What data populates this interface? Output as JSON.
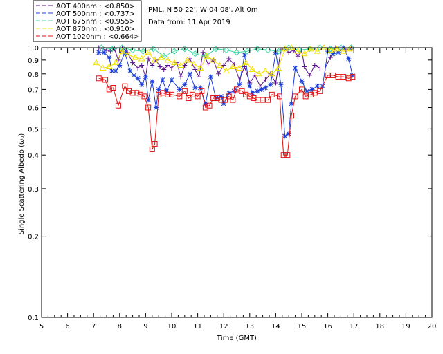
{
  "header": {
    "site": "PML, N 50 22', W 04 08', Alt 0m",
    "date": "Data from: 11 Apr 2019"
  },
  "legend": [
    {
      "label": "AOT  400nm : <0.850>",
      "color": "#5a0f8c"
    },
    {
      "label": "AOT  500nm : <0.737>",
      "color": "#1a3cd9"
    },
    {
      "label": "AOT  675nm : <0.955>",
      "color": "#3ed6a0"
    },
    {
      "label": "AOT  870nm : <0.910>",
      "color": "#f2e000"
    },
    {
      "label": "AOT 1020nm : <0.664>",
      "color": "#e01010"
    }
  ],
  "chart_data": {
    "type": "line",
    "title": "PML, N 50 22', W 04 08', Alt 0m",
    "subtitle": "Data from: 11 Apr 2019",
    "xlabel": "Time (GMT)",
    "ylabel": "Single Scattering Albedo (ω₀)",
    "xlim": [
      5,
      20
    ],
    "ylim": [
      0.1,
      1.0
    ],
    "yscale": "log",
    "x_ticks": [
      5,
      6,
      7,
      8,
      9,
      10,
      11,
      12,
      13,
      14,
      15,
      16,
      17,
      18,
      19,
      20
    ],
    "y_ticks": [
      0.1,
      0.2,
      0.3,
      0.4,
      0.5,
      0.6,
      0.7,
      0.8,
      0.9,
      1.0
    ],
    "y_tick_labels": [
      "0.1",
      "0.2",
      "0.3",
      "0.4",
      "0.5",
      "0.6",
      "0.7",
      "0.8",
      "0.9",
      "1.0"
    ],
    "series": [
      {
        "name": "AOT  400nm : <0.850>",
        "color": "#5a0f8c",
        "marker": "plus",
        "x": [
          7.2,
          7.5,
          7.65,
          7.8,
          7.95,
          8.1,
          8.3,
          8.5,
          8.7,
          8.85,
          9.0,
          9.1,
          9.25,
          9.4,
          9.55,
          9.7,
          9.85,
          10.0,
          10.2,
          10.35,
          10.5,
          10.7,
          10.9,
          11.05,
          11.2,
          11.4,
          11.6,
          11.8,
          12.0,
          12.2,
          12.4,
          12.6,
          12.8,
          13.0,
          13.2,
          13.4,
          13.6,
          13.8,
          14.0,
          14.2,
          14.35,
          14.5,
          14.7,
          14.85,
          15.0,
          15.1,
          15.3,
          15.5,
          15.7,
          15.9,
          16.1,
          16.3,
          16.5,
          16.7,
          16.9
        ],
        "y": [
          1.0,
          0.98,
          0.97,
          0.99,
          0.9,
          1.0,
          0.96,
          0.88,
          0.84,
          0.86,
          0.78,
          0.91,
          0.86,
          0.9,
          0.85,
          0.83,
          0.86,
          0.84,
          0.88,
          0.78,
          0.86,
          0.91,
          0.83,
          0.78,
          0.96,
          0.87,
          0.9,
          0.8,
          0.86,
          0.91,
          0.87,
          0.76,
          0.85,
          0.74,
          0.79,
          0.72,
          0.76,
          0.8,
          0.74,
          0.98,
          0.99,
          0.96,
          0.98,
          0.93,
          0.98,
          0.85,
          0.79,
          0.86,
          0.84,
          0.84,
          0.92,
          1.0,
          1.0,
          0.98,
          0.99
        ]
      },
      {
        "name": "AOT  500nm : <0.737>",
        "color": "#1a3cd9",
        "marker": "star",
        "x": [
          7.2,
          7.4,
          7.6,
          7.7,
          7.85,
          8.0,
          8.2,
          8.4,
          8.55,
          8.7,
          8.85,
          9.0,
          9.1,
          9.25,
          9.4,
          9.5,
          9.65,
          9.8,
          10.0,
          10.3,
          10.5,
          10.7,
          10.9,
          11.1,
          11.3,
          11.5,
          11.7,
          11.9,
          12.0,
          12.2,
          12.4,
          12.6,
          12.8,
          13.0,
          13.1,
          13.3,
          13.45,
          13.6,
          13.8,
          14.0,
          14.2,
          14.35,
          14.5,
          14.6,
          14.75,
          15.0,
          15.2,
          15.4,
          15.6,
          15.8,
          16.0,
          16.2,
          16.4,
          16.6,
          16.8,
          16.95
        ],
        "y": [
          0.96,
          0.96,
          0.92,
          0.82,
          0.82,
          0.86,
          0.96,
          0.82,
          0.79,
          0.77,
          0.73,
          0.78,
          0.64,
          0.75,
          0.6,
          0.7,
          0.76,
          0.69,
          0.76,
          0.7,
          0.73,
          0.8,
          0.71,
          0.71,
          0.62,
          0.78,
          0.65,
          0.66,
          0.62,
          0.68,
          0.69,
          0.73,
          0.94,
          0.72,
          0.68,
          0.69,
          0.7,
          0.71,
          0.73,
          0.96,
          0.73,
          0.47,
          0.48,
          0.62,
          0.84,
          0.75,
          0.69,
          0.7,
          0.72,
          0.72,
          0.97,
          0.95,
          0.96,
          1.0,
          0.91,
          0.79
        ]
      },
      {
        "name": "AOT  675nm : <0.955>",
        "color": "#3ed6a0",
        "marker": "diamond",
        "x": [
          7.3,
          7.7,
          8.1,
          8.5,
          8.9,
          9.3,
          9.7,
          10.1,
          10.5,
          10.9,
          11.3,
          11.7,
          12.1,
          12.5,
          12.9,
          13.3,
          13.7,
          14.1,
          14.5,
          14.9,
          15.3,
          15.7,
          16.1,
          16.5,
          16.9
        ],
        "y": [
          1.0,
          0.99,
          1.0,
          0.98,
          0.97,
          0.99,
          0.93,
          0.97,
          0.99,
          0.95,
          0.93,
          0.99,
          0.98,
          0.96,
          0.97,
          0.99,
          0.98,
          0.97,
          1.0,
          0.98,
          0.99,
          1.0,
          0.99,
          1.0,
          1.0
        ]
      },
      {
        "name": "AOT  870nm : <0.910>",
        "color": "#f2e000",
        "marker": "triangle",
        "x": [
          7.1,
          7.35,
          7.6,
          7.85,
          8.1,
          8.35,
          8.6,
          8.85,
          9.1,
          9.35,
          9.6,
          9.85,
          10.1,
          10.35,
          10.6,
          10.85,
          11.1,
          11.35,
          11.6,
          11.85,
          12.1,
          12.35,
          12.6,
          12.85,
          13.1,
          13.35,
          13.6,
          13.85,
          14.1,
          14.35,
          14.6,
          14.85,
          15.1,
          15.35,
          15.6,
          15.85,
          16.1,
          16.35,
          16.6,
          16.85
        ],
        "y": [
          0.88,
          0.84,
          0.85,
          0.88,
          0.97,
          0.94,
          0.92,
          0.91,
          0.96,
          0.9,
          0.92,
          0.9,
          0.88,
          0.86,
          0.9,
          0.87,
          0.84,
          0.93,
          0.9,
          0.86,
          0.82,
          0.85,
          0.84,
          0.88,
          0.83,
          0.8,
          0.82,
          0.8,
          0.84,
          0.99,
          1.0,
          0.97,
          0.95,
          0.99,
          0.97,
          1.0,
          0.98,
          0.99,
          0.97,
          0.99
        ]
      },
      {
        "name": "AOT 1020nm : <0.664>",
        "color": "#e01010",
        "marker": "square",
        "x": [
          7.2,
          7.45,
          7.6,
          7.75,
          7.95,
          8.2,
          8.35,
          8.5,
          8.65,
          8.8,
          8.95,
          9.1,
          9.25,
          9.35,
          9.5,
          9.65,
          9.85,
          10.0,
          10.3,
          10.5,
          10.65,
          10.8,
          11.0,
          11.15,
          11.3,
          11.45,
          11.6,
          11.75,
          11.9,
          12.05,
          12.2,
          12.35,
          12.5,
          12.7,
          12.85,
          13.0,
          13.15,
          13.3,
          13.5,
          13.7,
          13.85,
          14.15,
          14.3,
          14.45,
          14.6,
          14.75,
          15.0,
          15.15,
          15.35,
          15.5,
          15.7,
          16.0,
          16.2,
          16.4,
          16.6,
          16.8,
          16.95
        ],
        "y": [
          0.77,
          0.76,
          0.7,
          0.71,
          0.61,
          0.72,
          0.69,
          0.68,
          0.68,
          0.67,
          0.66,
          0.6,
          0.42,
          0.44,
          0.67,
          0.68,
          0.67,
          0.67,
          0.66,
          0.69,
          0.65,
          0.67,
          0.66,
          0.69,
          0.6,
          0.61,
          0.65,
          0.65,
          0.64,
          0.64,
          0.66,
          0.64,
          0.7,
          0.69,
          0.67,
          0.66,
          0.65,
          0.64,
          0.64,
          0.64,
          0.67,
          0.66,
          0.4,
          0.4,
          0.56,
          0.66,
          0.7,
          0.66,
          0.67,
          0.68,
          0.69,
          0.79,
          0.79,
          0.78,
          0.78,
          0.77,
          0.78
        ]
      }
    ]
  }
}
